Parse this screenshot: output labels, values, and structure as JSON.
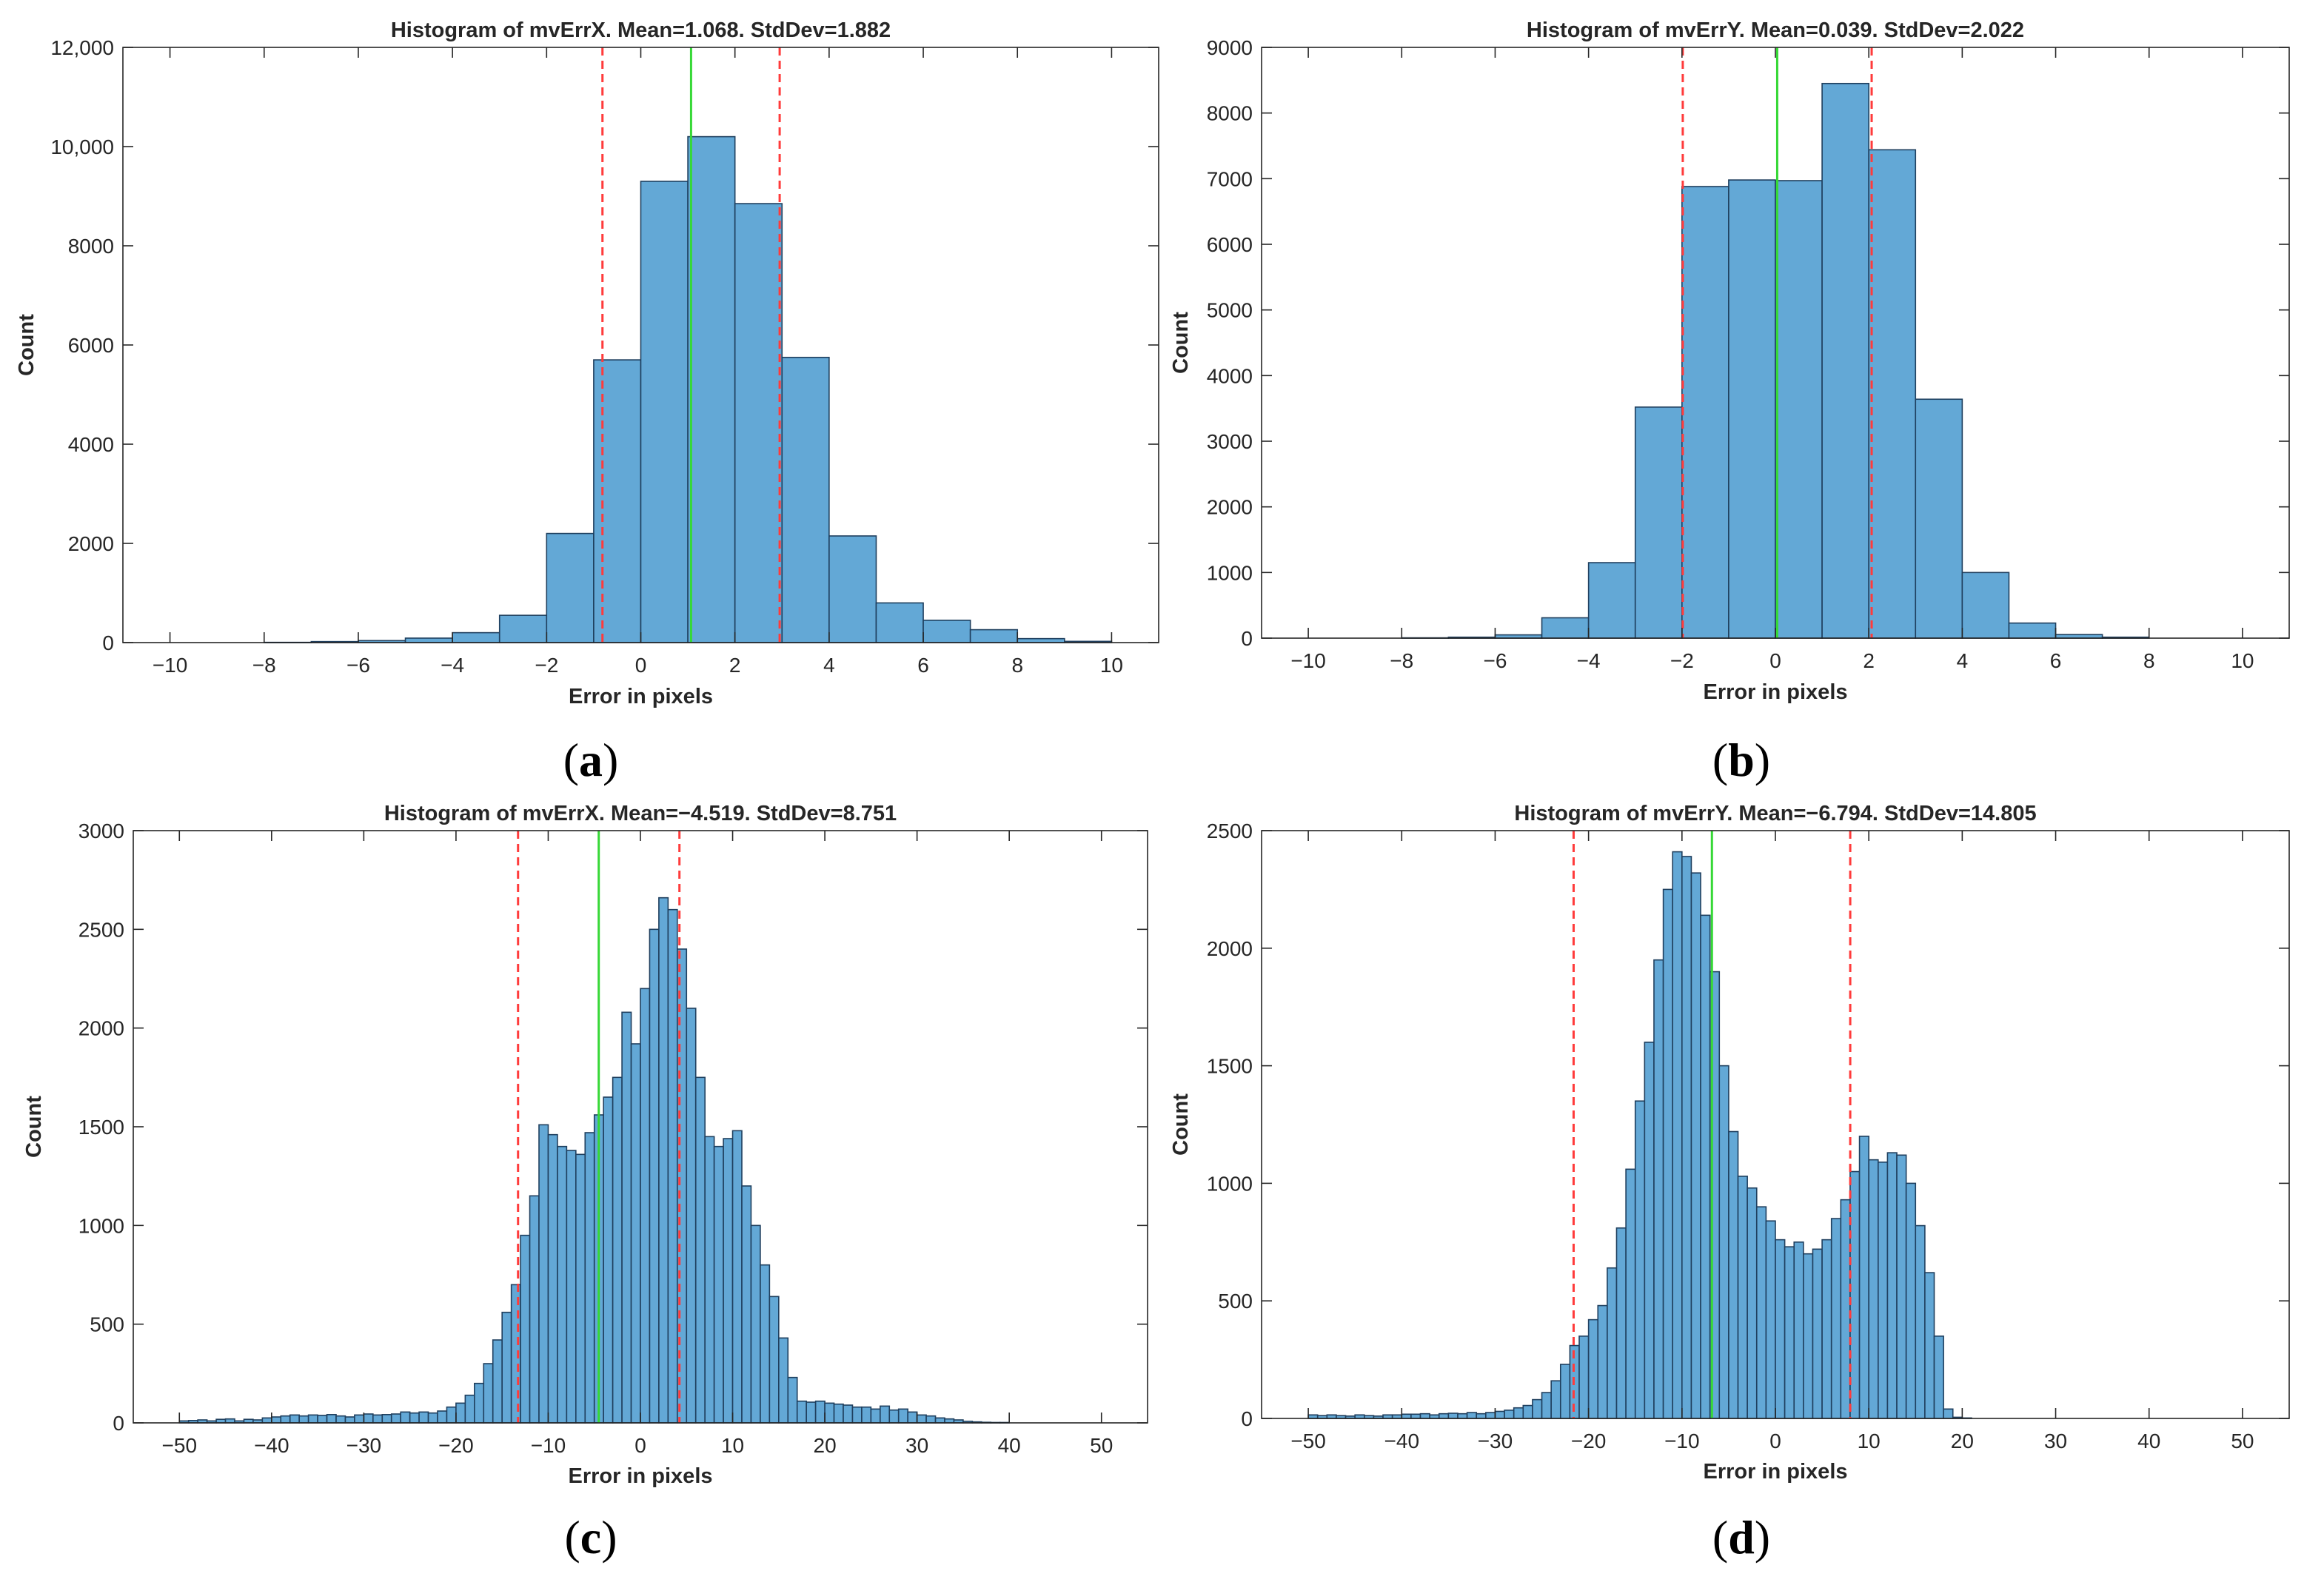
{
  "figure": {
    "colors": {
      "bar_fill": "#63a8d6",
      "bar_edge": "#1f3f5e",
      "mean_line": "#36d836",
      "std_line": "#ff3b3b",
      "axis": "#262626"
    }
  },
  "chart_data": [
    {
      "type": "bar",
      "caption": "a",
      "title": "Histogram of mvErrX.  Mean=1.068. StdDev=1.882",
      "xlabel": "Error in pixels",
      "ylabel": "Count",
      "xlim": [
        -11,
        11
      ],
      "ylim": [
        0,
        12000
      ],
      "xticks": [
        -10,
        -8,
        -6,
        -4,
        -2,
        0,
        2,
        4,
        6,
        8,
        10
      ],
      "xtick_labels": [
        "−10",
        "−8",
        "−6",
        "−4",
        "−2",
        "0",
        "2",
        "4",
        "6",
        "8",
        "10"
      ],
      "yticks": [
        0,
        2000,
        4000,
        6000,
        8000,
        10000,
        12000
      ],
      "ytick_labels": [
        "0",
        "2000",
        "4000",
        "6000",
        "8000",
        "10,000",
        "12,000"
      ],
      "bin_edges": [
        -10,
        -9,
        -8,
        -7,
        -6,
        -5,
        -4,
        -3,
        -2,
        -1,
        0,
        1,
        2,
        3,
        4,
        5,
        6,
        7,
        8,
        9,
        10
      ],
      "counts": [
        0,
        0,
        5,
        20,
        40,
        90,
        200,
        550,
        2200,
        5700,
        9300,
        10200,
        8850,
        5750,
        2150,
        800,
        450,
        260,
        80,
        25
      ],
      "mean": 1.068,
      "std": 1.882
    },
    {
      "type": "bar",
      "caption": "b",
      "title": "Histogram of mvErrY.  Mean=0.039. StdDev=2.022",
      "xlabel": "Error in pixels",
      "ylabel": "Count",
      "xlim": [
        -11,
        11
      ],
      "ylim": [
        0,
        9000
      ],
      "xticks": [
        -10,
        -8,
        -6,
        -4,
        -2,
        0,
        2,
        4,
        6,
        8,
        10
      ],
      "xtick_labels": [
        "−10",
        "−8",
        "−6",
        "−4",
        "−2",
        "0",
        "2",
        "4",
        "6",
        "8",
        "10"
      ],
      "yticks": [
        0,
        1000,
        2000,
        3000,
        4000,
        5000,
        6000,
        7000,
        8000,
        9000
      ],
      "ytick_labels": [
        "0",
        "1000",
        "2000",
        "3000",
        "4000",
        "5000",
        "6000",
        "7000",
        "8000",
        "9000"
      ],
      "bin_edges": [
        -10,
        -9,
        -8,
        -7,
        -6,
        -5,
        -4,
        -3,
        -2,
        -1,
        0,
        1,
        2,
        3,
        4,
        5,
        6,
        7,
        8,
        9,
        10
      ],
      "counts": [
        0,
        0,
        5,
        15,
        50,
        310,
        1150,
        3520,
        6880,
        6980,
        6970,
        8450,
        7440,
        3640,
        1000,
        230,
        55,
        15,
        0,
        0
      ],
      "mean": 0.039,
      "std": 2.022
    },
    {
      "type": "bar",
      "caption": "c",
      "title": "Histogram of mvErrX.  Mean=−4.519. StdDev=8.751",
      "xlabel": "Error in pixels",
      "ylabel": "Count",
      "xlim": [
        -55,
        55
      ],
      "ylim": [
        0,
        3000
      ],
      "xticks": [
        -50,
        -40,
        -30,
        -20,
        -10,
        0,
        10,
        20,
        30,
        40,
        50
      ],
      "xtick_labels": [
        "−50",
        "−40",
        "−30",
        "−20",
        "−10",
        "0",
        "10",
        "20",
        "30",
        "40",
        "50"
      ],
      "yticks": [
        0,
        500,
        1000,
        1500,
        2000,
        2500,
        3000
      ],
      "ytick_labels": [
        "0",
        "500",
        "1000",
        "1500",
        "2000",
        "2500",
        "3000"
      ],
      "bin_start": -50,
      "bin_width": 1,
      "counts": [
        10,
        12,
        15,
        10,
        18,
        20,
        10,
        18,
        15,
        25,
        30,
        35,
        40,
        35,
        40,
        38,
        42,
        35,
        30,
        40,
        45,
        40,
        42,
        45,
        55,
        50,
        55,
        50,
        60,
        80,
        100,
        140,
        200,
        300,
        420,
        560,
        700,
        950,
        1150,
        1510,
        1460,
        1400,
        1380,
        1360,
        1470,
        1560,
        1650,
        1750,
        2080,
        1920,
        2200,
        2500,
        2660,
        2600,
        2400,
        2100,
        1750,
        1450,
        1400,
        1440,
        1480,
        1200,
        1000,
        800,
        640,
        430,
        230,
        110,
        105,
        110,
        100,
        95,
        90,
        80,
        80,
        70,
        85,
        65,
        70,
        55,
        40,
        35,
        25,
        20,
        15,
        8,
        5,
        3,
        2,
        2,
        0,
        0,
        0,
        0,
        0,
        0,
        0,
        0,
        0,
        0
      ],
      "mean": -4.519,
      "std": 8.751
    },
    {
      "type": "bar",
      "caption": "d",
      "title": "Histogram of mvErrY.  Mean=−6.794. StdDev=14.805",
      "xlabel": "Error in pixels",
      "ylabel": "Count",
      "xlim": [
        -55,
        55
      ],
      "ylim": [
        0,
        2500
      ],
      "xticks": [
        -50,
        -40,
        -30,
        -20,
        -10,
        0,
        10,
        20,
        30,
        40,
        50
      ],
      "xtick_labels": [
        "−50",
        "−40",
        "−30",
        "−20",
        "−10",
        "0",
        "10",
        "20",
        "30",
        "40",
        "50"
      ],
      "yticks": [
        0,
        500,
        1000,
        1500,
        2000,
        2500
      ],
      "ytick_labels": [
        "0",
        "500",
        "1000",
        "1500",
        "2000",
        "2500"
      ],
      "bin_start": -50,
      "bin_width": 1,
      "counts": [
        15,
        12,
        15,
        12,
        10,
        15,
        12,
        10,
        15,
        15,
        18,
        18,
        20,
        15,
        20,
        22,
        20,
        25,
        20,
        25,
        30,
        35,
        45,
        55,
        80,
        110,
        160,
        230,
        310,
        350,
        420,
        480,
        640,
        810,
        1060,
        1350,
        1600,
        1950,
        2250,
        2410,
        2390,
        2320,
        2140,
        1900,
        1500,
        1220,
        1030,
        980,
        900,
        840,
        760,
        730,
        750,
        700,
        720,
        760,
        850,
        930,
        1050,
        1200,
        1100,
        1090,
        1130,
        1120,
        1000,
        820,
        620,
        350,
        40,
        5,
        2,
        0,
        0,
        0,
        0,
        0,
        0,
        0,
        0,
        0,
        0,
        0,
        0,
        0,
        0,
        0,
        0,
        0,
        0,
        0,
        0,
        0,
        0,
        0,
        0,
        0,
        0,
        0,
        0,
        0
      ],
      "mean": -6.794,
      "std": 14.805
    }
  ]
}
